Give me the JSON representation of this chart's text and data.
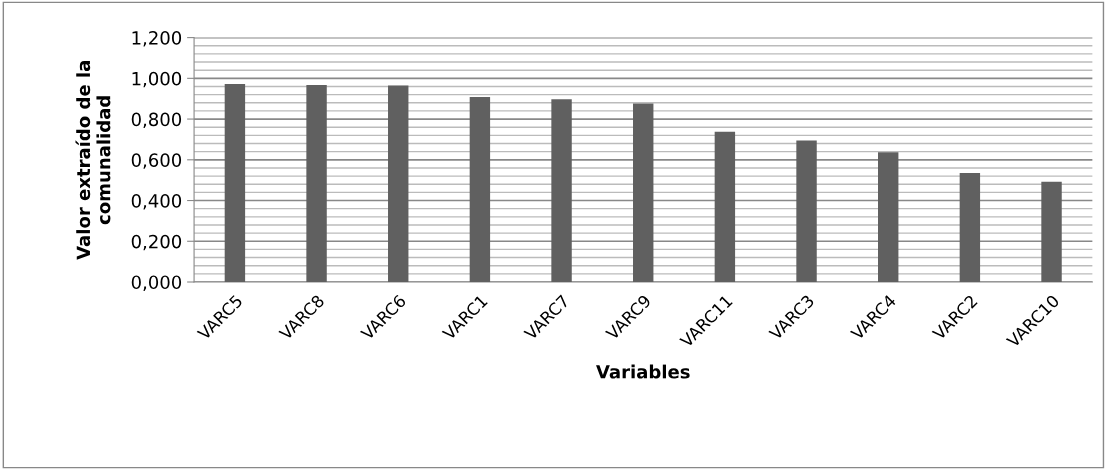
{
  "chart_data": {
    "type": "bar",
    "xlabel": "Variables",
    "ylabel": "Valor extraído de la\ncomunalidad",
    "categories": [
      "VARC5",
      "VARC8",
      "VARC6",
      "VARC1",
      "VARC7",
      "VARC9",
      "VARC11",
      "VARC3",
      "VARC4",
      "VARC2",
      "VARC10"
    ],
    "values": [
      0.972,
      0.967,
      0.965,
      0.908,
      0.897,
      0.877,
      0.738,
      0.695,
      0.637,
      0.535,
      0.492
    ],
    "color": "#606060",
    "ylim": [
      0,
      1.2
    ],
    "yticks": [
      {
        "value": 0,
        "label": "0,000"
      },
      {
        "value": 0.2,
        "label": "0,200"
      },
      {
        "value": 0.4,
        "label": "0,400"
      },
      {
        "value": 0.6,
        "label": "0,600"
      },
      {
        "value": 0.8,
        "label": "0,800"
      },
      {
        "value": 1.0,
        "label": "1,000"
      },
      {
        "value": 1.2,
        "label": "1,200"
      }
    ],
    "grid": "y"
  }
}
